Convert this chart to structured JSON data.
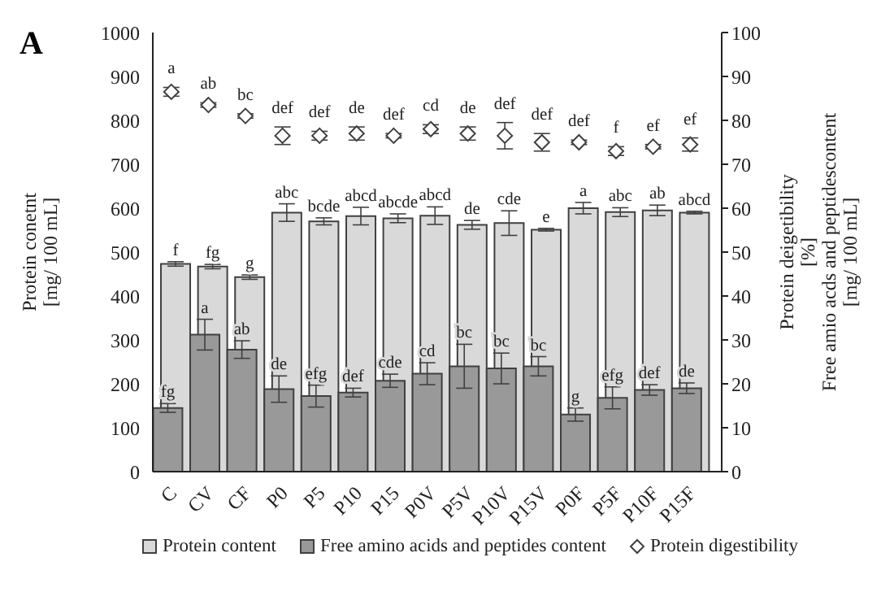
{
  "chart_data": {
    "type": "bar",
    "annotations": [
      "A"
    ],
    "ylabel": "Protein conetnt\n[mg/ 100 mL]",
    "y2label": "Protein deigetibility\n[%]\nFree amio acds and peptidescontent\n[mg/ 100 mL]",
    "categories": [
      "C",
      "CV",
      "CF",
      "P0",
      "P5",
      "P10",
      "P15",
      "P0V",
      "P5V",
      "P10V",
      "P15V",
      "P0F",
      "P5F",
      "P10F",
      "P15F"
    ],
    "ylim": [
      0,
      1000
    ],
    "yticks": [
      0,
      100,
      200,
      300,
      400,
      500,
      600,
      700,
      800,
      900,
      1000
    ],
    "y2lim": [
      0,
      100
    ],
    "y2ticks": [
      0,
      10,
      20,
      30,
      40,
      50,
      60,
      70,
      80,
      90,
      100
    ],
    "legend": "bottom",
    "series": [
      {
        "name": "Protein content",
        "color": "#d9d9d9",
        "values": [
          473,
          467,
          443,
          590,
          570,
          582,
          577,
          583,
          562,
          566,
          551,
          600,
          591,
          595,
          590
        ],
        "errors": [
          5,
          5,
          5,
          20,
          8,
          20,
          10,
          20,
          10,
          28,
          3,
          13,
          10,
          12,
          3
        ],
        "value_labels": [
          "f",
          "fg",
          "g",
          "abc",
          "bcde",
          "abcd",
          "abcde",
          "abcd",
          "de",
          "cde",
          "e",
          "a",
          "abc",
          "ab",
          "abcd"
        ]
      },
      {
        "name": "Free amino acids and peptides content",
        "color": "#999999",
        "values": [
          145,
          312,
          278,
          188,
          172,
          180,
          207,
          223,
          240,
          235,
          240,
          130,
          168,
          186,
          190
        ],
        "errors": [
          10,
          35,
          20,
          30,
          25,
          10,
          15,
          25,
          50,
          35,
          22,
          15,
          25,
          12,
          12
        ],
        "value_labels": [
          "fg",
          "a",
          "ab",
          "de",
          "efg",
          "def",
          "cde",
          "cd",
          "bc",
          "bc",
          "bc",
          "g",
          "efg",
          "def",
          "de"
        ]
      },
      {
        "name": "Protein digestibility",
        "type": "scatter",
        "axis": "y2",
        "marker": "diamond",
        "color": "#ffffff",
        "values": [
          86.5,
          83.5,
          81,
          76.5,
          76.5,
          77,
          76.5,
          78,
          77,
          76.5,
          75,
          75,
          73,
          74,
          74.5
        ],
        "errors": [
          1,
          0.5,
          0.5,
          2,
          1,
          1.5,
          0.5,
          1,
          1.5,
          3,
          2,
          0.5,
          1,
          0.5,
          1.5
        ],
        "value_labels": [
          "a",
          "ab",
          "bc",
          "def",
          "def",
          "de",
          "def",
          "cd",
          "de",
          "def",
          "def",
          "def",
          "f",
          "ef",
          "ef"
        ]
      }
    ]
  }
}
